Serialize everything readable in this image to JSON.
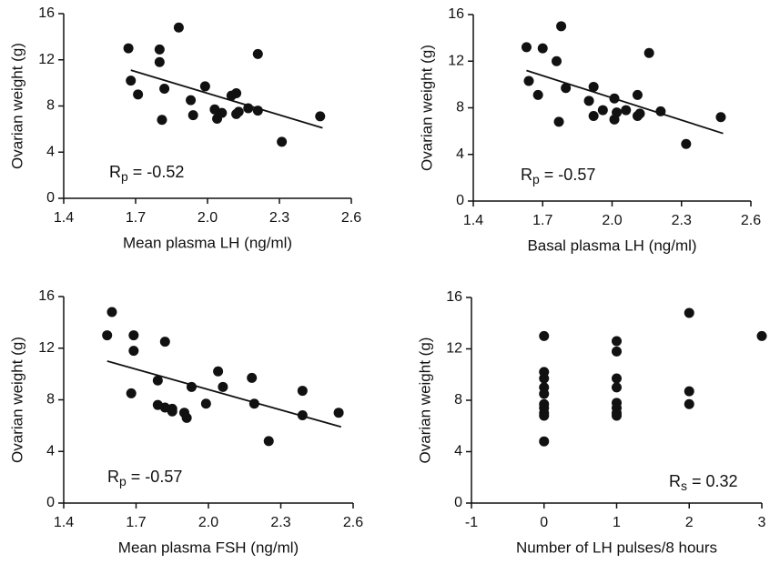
{
  "chart_data": [
    {
      "type": "scatter",
      "x_label": "Mean plasma LH (ng/ml)",
      "y_label": "Ovarian weight (g)",
      "color": "#111111",
      "x": [
        1.67,
        1.68,
        1.71,
        1.8,
        1.8,
        1.81,
        1.82,
        1.88,
        1.93,
        1.94,
        1.99,
        2.03,
        2.04,
        2.06,
        2.1,
        2.12,
        2.12,
        2.13,
        2.17,
        2.21,
        2.21,
        2.31,
        2.47
      ],
      "values": [
        13.0,
        10.2,
        9.0,
        12.9,
        11.8,
        6.8,
        9.5,
        14.8,
        8.5,
        7.2,
        9.7,
        7.7,
        6.9,
        7.4,
        8.9,
        9.1,
        7.3,
        7.5,
        7.8,
        7.6,
        12.5,
        4.9,
        7.1
      ],
      "fit_line": {
        "x": [
          1.68,
          2.48
        ],
        "values": [
          11.1,
          6.1
        ]
      },
      "annotation": {
        "symbol": "R",
        "subscript": "p",
        "text": " = -0.52"
      },
      "xlim": [
        1.4,
        2.6
      ],
      "xticks": [
        1.4,
        1.7,
        {
          "value": 2,
          "label": "2.0"
        },
        2.3,
        2.6
      ],
      "ylim": [
        0,
        16
      ],
      "yticks": [
        0,
        4,
        8,
        12,
        16
      ]
    },
    {
      "type": "scatter",
      "x_label": "Basal plasma LH (ng/ml)",
      "y_label": "Ovarian weight (g)",
      "color": "#111111",
      "x": [
        1.63,
        1.64,
        1.68,
        1.7,
        1.76,
        1.77,
        1.8,
        1.78,
        1.9,
        1.92,
        1.92,
        1.96,
        2.01,
        2.01,
        2.02,
        2.06,
        2.11,
        2.11,
        2.12,
        2.16,
        2.21,
        2.32,
        2.47
      ],
      "values": [
        13.2,
        10.3,
        9.1,
        13.1,
        12.0,
        6.8,
        9.7,
        15.0,
        8.6,
        7.3,
        9.8,
        7.8,
        7.0,
        8.8,
        7.6,
        7.8,
        9.1,
        7.3,
        7.5,
        12.7,
        7.7,
        4.9,
        7.2
      ],
      "fit_line": {
        "x": [
          1.63,
          2.48
        ],
        "values": [
          11.2,
          5.8
        ]
      },
      "annotation": {
        "symbol": "R",
        "subscript": "p",
        "text": " = -0.57"
      },
      "xlim": [
        1.4,
        2.6
      ],
      "xticks": [
        1.4,
        1.7,
        {
          "value": 2,
          "label": "2.0"
        },
        2.3,
        2.6
      ],
      "ylim": [
        0,
        16
      ],
      "yticks": [
        0,
        4,
        8,
        12,
        16
      ]
    },
    {
      "type": "scatter",
      "x_label": "Mean plasma FSH (ng/ml)",
      "y_label": "Ovarian weight (g)",
      "color": "#111111",
      "x": [
        1.58,
        1.6,
        1.68,
        1.69,
        1.69,
        1.79,
        1.79,
        1.82,
        1.82,
        1.85,
        1.85,
        1.9,
        1.91,
        1.93,
        1.99,
        2.04,
        2.06,
        2.18,
        2.19,
        2.25,
        2.39,
        2.39,
        2.54
      ],
      "values": [
        13.0,
        14.8,
        8.5,
        13.0,
        11.8,
        9.5,
        7.6,
        12.5,
        7.4,
        7.3,
        7.1,
        7.0,
        6.6,
        9.0,
        7.7,
        10.2,
        9.0,
        9.7,
        7.7,
        4.8,
        8.7,
        6.8,
        7.0
      ],
      "fit_line": {
        "x": [
          1.58,
          2.55
        ],
        "values": [
          11.0,
          5.9
        ]
      },
      "annotation": {
        "symbol": "R",
        "subscript": "p",
        "text": " = -0.57"
      },
      "xlim": [
        1.4,
        2.6
      ],
      "xticks": [
        1.4,
        1.7,
        {
          "value": 2,
          "label": "2.0"
        },
        2.3,
        2.6
      ],
      "ylim": [
        0,
        16
      ],
      "yticks": [
        0,
        4,
        8,
        12,
        16
      ]
    },
    {
      "type": "scatter",
      "x_label": "Number of LH pulses/8 hours",
      "y_label": "Ovarian weight (g)",
      "color": "#111111",
      "x": [
        0,
        0,
        0,
        0,
        0,
        0,
        0,
        0,
        0,
        0,
        1,
        1,
        1,
        1,
        1,
        1,
        1,
        1,
        2,
        2,
        2,
        3
      ],
      "values": [
        13.0,
        10.2,
        9.7,
        9.0,
        8.5,
        7.7,
        7.4,
        7.0,
        6.8,
        4.8,
        12.6,
        11.8,
        9.7,
        9.0,
        7.8,
        7.4,
        7.0,
        6.8,
        14.8,
        8.7,
        7.7,
        13.0
      ],
      "annotation": {
        "symbol": "R",
        "subscript": "s",
        "text": " = 0.32"
      },
      "xlim": [
        -1,
        3
      ],
      "xticks": [
        -1,
        0,
        1,
        2,
        3
      ],
      "ylim": [
        0,
        16
      ],
      "yticks": [
        0,
        4,
        8,
        12,
        16
      ]
    }
  ]
}
